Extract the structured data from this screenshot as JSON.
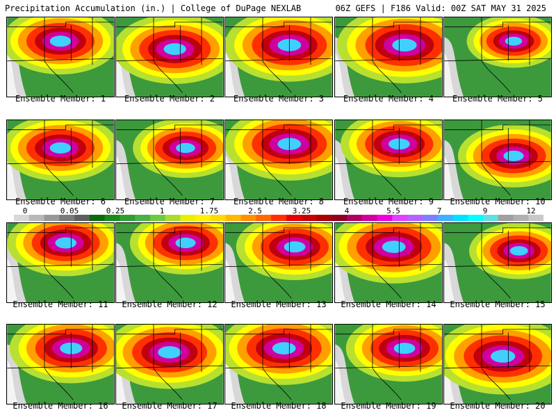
{
  "header": {
    "left_title": "Precipitation Accumulation (in.) | College of DuPage NEXLAB",
    "right_title": "06Z GEFS | F186 Valid: 00Z SAT MAY 31 2025"
  },
  "members": [
    {
      "label": "Ensemble Member: 1",
      "center": [
        0.5,
        0.3
      ],
      "spread": 1.0
    },
    {
      "label": "Ensemble Member: 2",
      "center": [
        0.55,
        0.4
      ],
      "spread": 1.05
    },
    {
      "label": "Ensemble Member: 3",
      "center": [
        0.6,
        0.35
      ],
      "spread": 1.1
    },
    {
      "label": "Ensemble Member: 4",
      "center": [
        0.65,
        0.35
      ],
      "spread": 1.15
    },
    {
      "label": "Ensemble Member: 5",
      "center": [
        0.65,
        0.3
      ],
      "spread": 0.8
    },
    {
      "label": "Ensemble Member: 6",
      "center": [
        0.5,
        0.35
      ],
      "spread": 1.0
    },
    {
      "label": "Ensemble Member: 7",
      "center": [
        0.65,
        0.35
      ],
      "spread": 0.9
    },
    {
      "label": "Ensemble Member: 8",
      "center": [
        0.6,
        0.3
      ],
      "spread": 1.1
    },
    {
      "label": "Ensemble Member: 9",
      "center": [
        0.6,
        0.3
      ],
      "spread": 1.0
    },
    {
      "label": "Ensemble Member: 10",
      "center": [
        0.65,
        0.45
      ],
      "spread": 0.95
    },
    {
      "label": "Ensemble Member: 11",
      "center": [
        0.55,
        0.25
      ],
      "spread": 1.0
    },
    {
      "label": "Ensemble Member: 12",
      "center": [
        0.65,
        0.25
      ],
      "spread": 0.95
    },
    {
      "label": "Ensemble Member: 13",
      "center": [
        0.65,
        0.3
      ],
      "spread": 1.0
    },
    {
      "label": "Ensemble Member: 14",
      "center": [
        0.55,
        0.3
      ],
      "spread": 1.1
    },
    {
      "label": "Ensemble Member: 15",
      "center": [
        0.7,
        0.35
      ],
      "spread": 0.85
    },
    {
      "label": "Ensemble Member: 16",
      "center": [
        0.6,
        0.3
      ],
      "spread": 1.05
    },
    {
      "label": "Ensemble Member: 17",
      "center": [
        0.5,
        0.35
      ],
      "spread": 1.1
    },
    {
      "label": "Ensemble Member: 18",
      "center": [
        0.55,
        0.3
      ],
      "spread": 1.1
    },
    {
      "label": "Ensemble Member: 19",
      "center": [
        0.65,
        0.3
      ],
      "spread": 1.0
    },
    {
      "label": "Ensemble Member: 20",
      "center": [
        0.55,
        0.4
      ],
      "spread": 1.15
    }
  ],
  "colorbar": {
    "labels": [
      "0",
      "0.05",
      "0.25",
      "1",
      "1.75",
      "2.5",
      "3.25",
      "4",
      "5.5",
      "7",
      "9",
      "12"
    ],
    "colors": [
      "#d8d8d8",
      "#b8b8b8",
      "#989898",
      "#7a7a7a",
      "#5e5e5e",
      "#0c6b0c",
      "#1a8a1a",
      "#2e9e2e",
      "#48b048",
      "#70c840",
      "#a8dc30",
      "#e8f000",
      "#fff000",
      "#ffd800",
      "#ffb800",
      "#ff9000",
      "#ff6800",
      "#ff3000",
      "#e80000",
      "#c80000",
      "#a80000",
      "#900020",
      "#b00060",
      "#d0009a",
      "#f000d8",
      "#e040ff",
      "#b860ff",
      "#8080ff",
      "#40b0ff",
      "#00e0ff",
      "#00ffff",
      "#60e0e0",
      "#a0a0a0",
      "#b0b0b0",
      "#c8c8c8"
    ]
  }
}
